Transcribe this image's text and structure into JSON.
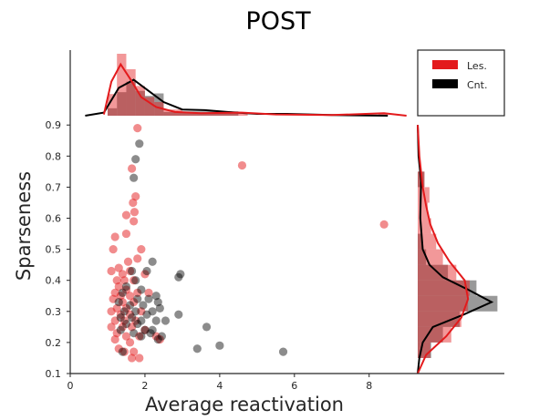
{
  "chart_data": {
    "type": "scatter",
    "title": "POST",
    "xlabel": "Average reactivation",
    "ylabel": "Sparseness",
    "xlim": [
      0,
      9.3
    ],
    "ylim": [
      0.1,
      0.93
    ],
    "xticks": [
      0,
      2,
      4,
      6,
      8
    ],
    "xtick_labels": [
      "0",
      "2",
      "4",
      "6",
      "8"
    ],
    "yticks": [
      0.1,
      0.2,
      0.3,
      0.4,
      0.5,
      0.6,
      0.7,
      0.8,
      0.9
    ],
    "ytick_labels": [
      "0.1",
      "0.2",
      "0.3",
      "0.4",
      "0.5",
      "0.6",
      "0.7",
      "0.8",
      "0.9"
    ],
    "grid": false,
    "legend_position": "top-right",
    "colors": {
      "les": "#e31a1c",
      "cnt": "#000000"
    },
    "series": [
      {
        "name": "Les.",
        "color": "#e31a1c",
        "points": [
          [
            1.8,
            0.89
          ],
          [
            1.65,
            0.76
          ],
          [
            1.75,
            0.67
          ],
          [
            1.68,
            0.65
          ],
          [
            1.5,
            0.61
          ],
          [
            1.72,
            0.62
          ],
          [
            1.7,
            0.59
          ],
          [
            1.5,
            0.55
          ],
          [
            1.2,
            0.54
          ],
          [
            1.15,
            0.5
          ],
          [
            1.9,
            0.5
          ],
          [
            1.3,
            0.44
          ],
          [
            1.55,
            0.46
          ],
          [
            1.8,
            0.47
          ],
          [
            1.1,
            0.43
          ],
          [
            1.4,
            0.42
          ],
          [
            1.6,
            0.43
          ],
          [
            2.0,
            0.42
          ],
          [
            1.25,
            0.4
          ],
          [
            1.45,
            0.4
          ],
          [
            1.7,
            0.4
          ],
          [
            1.3,
            0.38
          ],
          [
            1.5,
            0.37
          ],
          [
            1.2,
            0.36
          ],
          [
            1.35,
            0.35
          ],
          [
            1.6,
            0.35
          ],
          [
            1.8,
            0.36
          ],
          [
            2.1,
            0.36
          ],
          [
            1.15,
            0.34
          ],
          [
            1.4,
            0.33
          ],
          [
            1.7,
            0.33
          ],
          [
            1.25,
            0.31
          ],
          [
            1.5,
            0.31
          ],
          [
            1.1,
            0.3
          ],
          [
            1.35,
            0.29
          ],
          [
            1.6,
            0.29
          ],
          [
            1.9,
            0.3
          ],
          [
            1.2,
            0.27
          ],
          [
            1.45,
            0.27
          ],
          [
            1.75,
            0.27
          ],
          [
            1.1,
            0.25
          ],
          [
            1.4,
            0.25
          ],
          [
            1.65,
            0.25
          ],
          [
            2.0,
            0.24
          ],
          [
            1.25,
            0.23
          ],
          [
            1.5,
            0.22
          ],
          [
            1.85,
            0.22
          ],
          [
            1.2,
            0.21
          ],
          [
            1.6,
            0.2
          ],
          [
            1.3,
            0.18
          ],
          [
            1.45,
            0.17
          ],
          [
            1.7,
            0.17
          ],
          [
            1.65,
            0.15
          ],
          [
            1.85,
            0.15
          ],
          [
            2.3,
            0.22
          ],
          [
            2.4,
            0.21
          ],
          [
            4.6,
            0.77
          ],
          [
            8.4,
            0.58
          ]
        ]
      },
      {
        "name": "Cnt.",
        "color": "#000000",
        "points": [
          [
            1.85,
            0.84
          ],
          [
            1.75,
            0.79
          ],
          [
            1.7,
            0.73
          ],
          [
            2.2,
            0.46
          ],
          [
            2.05,
            0.43
          ],
          [
            1.65,
            0.43
          ],
          [
            1.75,
            0.4
          ],
          [
            2.9,
            0.41
          ],
          [
            2.95,
            0.42
          ],
          [
            1.5,
            0.38
          ],
          [
            1.9,
            0.37
          ],
          [
            2.3,
            0.35
          ],
          [
            1.4,
            0.36
          ],
          [
            1.8,
            0.34
          ],
          [
            2.1,
            0.34
          ],
          [
            2.35,
            0.33
          ],
          [
            1.3,
            0.33
          ],
          [
            1.6,
            0.32
          ],
          [
            1.95,
            0.32
          ],
          [
            2.4,
            0.31
          ],
          [
            1.45,
            0.3
          ],
          [
            1.75,
            0.3
          ],
          [
            2.05,
            0.29
          ],
          [
            2.2,
            0.3
          ],
          [
            2.9,
            0.29
          ],
          [
            1.35,
            0.28
          ],
          [
            1.65,
            0.28
          ],
          [
            1.9,
            0.27
          ],
          [
            2.3,
            0.27
          ],
          [
            2.55,
            0.27
          ],
          [
            1.5,
            0.26
          ],
          [
            1.8,
            0.26
          ],
          [
            1.35,
            0.24
          ],
          [
            2.0,
            0.24
          ],
          [
            2.2,
            0.24
          ],
          [
            1.7,
            0.23
          ],
          [
            1.9,
            0.22
          ],
          [
            2.15,
            0.23
          ],
          [
            2.45,
            0.22
          ],
          [
            2.35,
            0.21
          ],
          [
            1.4,
            0.17
          ],
          [
            3.4,
            0.18
          ],
          [
            3.65,
            0.25
          ],
          [
            4.0,
            0.19
          ],
          [
            5.7,
            0.17
          ]
        ]
      }
    ],
    "marginal_x": {
      "bin_edges": [
        1.0,
        1.25,
        1.5,
        1.75,
        2.0,
        2.25,
        2.5,
        3.0,
        4.5,
        4.75,
        8.25,
        8.5
      ],
      "les_density": [
        0.35,
        1.0,
        0.75,
        0.48,
        0.3,
        0.22,
        0.1,
        0.05,
        0.04,
        0.0,
        0.03
      ],
      "cnt_density": [
        0.12,
        0.38,
        0.55,
        0.4,
        0.32,
        0.36,
        0.06,
        0.07,
        0.0,
        0.0,
        0.0
      ],
      "les_kde": [
        [
          0.9,
          0.02
        ],
        [
          1.1,
          0.55
        ],
        [
          1.35,
          0.83
        ],
        [
          1.6,
          0.6
        ],
        [
          1.9,
          0.3
        ],
        [
          2.3,
          0.14
        ],
        [
          2.8,
          0.06
        ],
        [
          3.5,
          0.04
        ],
        [
          4.6,
          0.05
        ],
        [
          5.5,
          0.02
        ],
        [
          7.0,
          0.01
        ],
        [
          8.4,
          0.04
        ],
        [
          9.0,
          0.0
        ]
      ],
      "cnt_kde": [
        [
          0.4,
          0.0
        ],
        [
          0.9,
          0.05
        ],
        [
          1.3,
          0.45
        ],
        [
          1.7,
          0.58
        ],
        [
          2.1,
          0.4
        ],
        [
          2.5,
          0.22
        ],
        [
          3.0,
          0.1
        ],
        [
          3.6,
          0.09
        ],
        [
          4.2,
          0.06
        ],
        [
          5.0,
          0.03
        ],
        [
          5.8,
          0.03
        ],
        [
          7.0,
          0.01
        ],
        [
          8.5,
          0.0
        ]
      ]
    },
    "marginal_y": {
      "bin_edges": [
        0.15,
        0.2,
        0.25,
        0.3,
        0.35,
        0.4,
        0.45,
        0.5,
        0.55,
        0.6,
        0.65,
        0.7,
        0.75
      ],
      "les_density": [
        0.15,
        0.4,
        0.52,
        0.6,
        0.62,
        0.46,
        0.3,
        0.22,
        0.16,
        0.12,
        0.14,
        0.08
      ],
      "cnt_density": [
        0.16,
        0.3,
        0.5,
        0.95,
        0.7,
        0.36,
        0.1,
        0.05,
        0.0,
        0.0,
        0.0,
        0.08
      ],
      "les_kde": [
        [
          0.1,
          0.0
        ],
        [
          0.16,
          0.1
        ],
        [
          0.22,
          0.34
        ],
        [
          0.28,
          0.52
        ],
        [
          0.34,
          0.6
        ],
        [
          0.4,
          0.56
        ],
        [
          0.46,
          0.38
        ],
        [
          0.52,
          0.24
        ],
        [
          0.58,
          0.15
        ],
        [
          0.64,
          0.1
        ],
        [
          0.7,
          0.06
        ],
        [
          0.8,
          0.02
        ],
        [
          0.9,
          0.0
        ]
      ],
      "cnt_kde": [
        [
          0.1,
          0.0
        ],
        [
          0.15,
          0.02
        ],
        [
          0.2,
          0.06
        ],
        [
          0.25,
          0.18
        ],
        [
          0.29,
          0.55
        ],
        [
          0.33,
          0.88
        ],
        [
          0.37,
          0.6
        ],
        [
          0.41,
          0.3
        ],
        [
          0.45,
          0.14
        ],
        [
          0.5,
          0.06
        ],
        [
          0.6,
          0.03
        ],
        [
          0.72,
          0.04
        ],
        [
          0.8,
          0.01
        ],
        [
          0.9,
          0.0
        ]
      ]
    }
  }
}
